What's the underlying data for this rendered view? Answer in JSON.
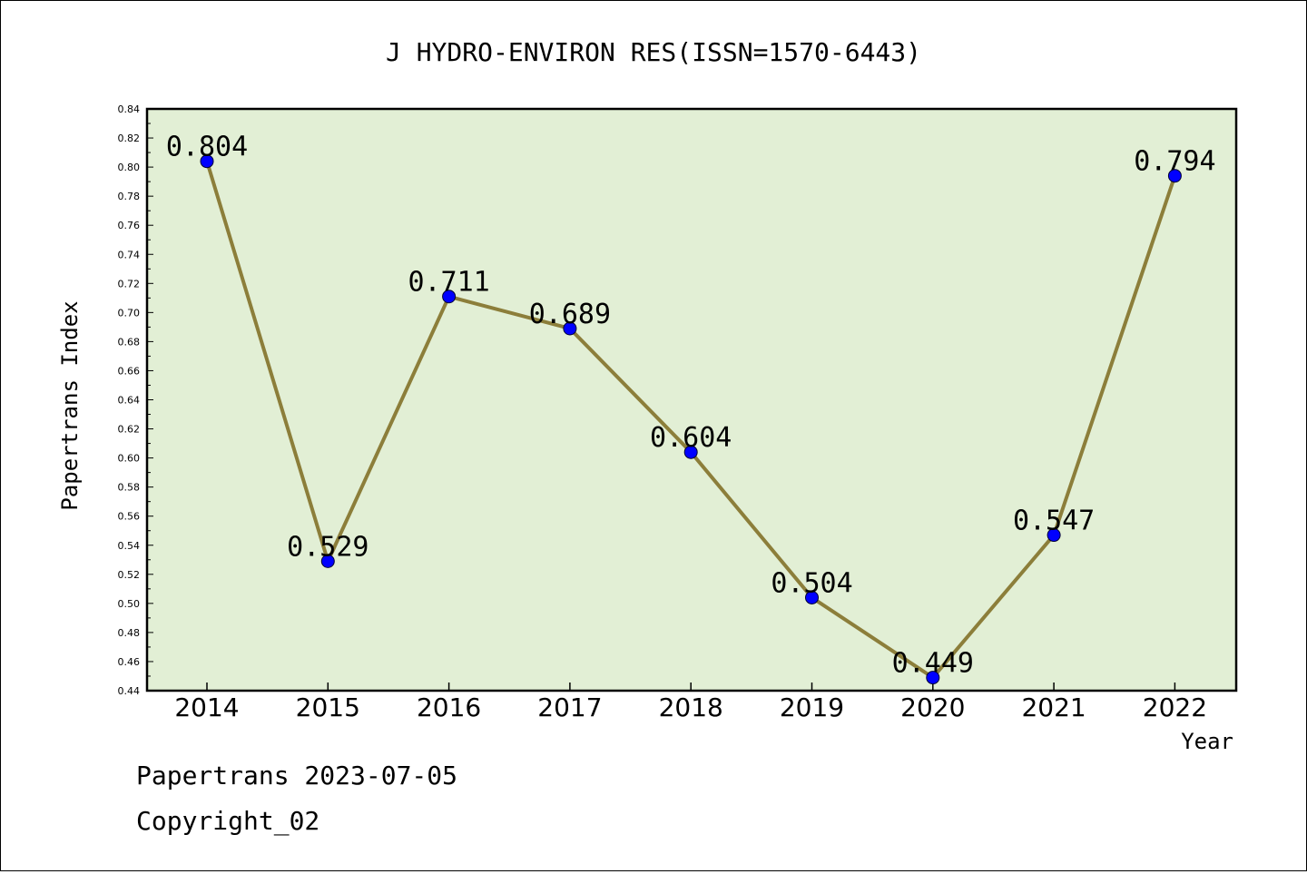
{
  "chart_data": {
    "type": "line",
    "title": "J HYDRO-ENVIRON RES(ISSN=1570-6443)",
    "xlabel": "Year",
    "ylabel": "Papertrans Index",
    "categories": [
      "2014",
      "2015",
      "2016",
      "2017",
      "2018",
      "2019",
      "2020",
      "2021",
      "2022"
    ],
    "series": [
      {
        "values": [
          0.804,
          0.529,
          0.711,
          0.689,
          0.604,
          0.504,
          0.449,
          0.547,
          0.794
        ],
        "labels": [
          "0.804",
          "0.529",
          "0.711",
          "0.689",
          "0.604",
          "0.504",
          "0.449",
          "0.547",
          "0.794"
        ]
      }
    ],
    "ylim": [
      0.44,
      0.84
    ],
    "yticks": [
      "0.44",
      "0.46",
      "0.48",
      "0.50",
      "0.52",
      "0.54",
      "0.56",
      "0.58",
      "0.60",
      "0.62",
      "0.64",
      "0.66",
      "0.68",
      "0.70",
      "0.72",
      "0.74",
      "0.76",
      "0.78",
      "0.80",
      "0.82",
      "0.84"
    ],
    "grid": false,
    "legend": "none",
    "colors": {
      "plot_background": "#e2efd5",
      "line": "#8c7e3a",
      "marker": "#0000ff"
    }
  },
  "footer": {
    "line1": "Papertrans 2023-07-05",
    "line2": "Copyright_02"
  }
}
